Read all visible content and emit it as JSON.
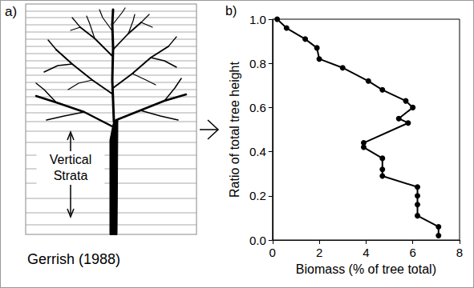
{
  "diagram": {
    "label": "a)",
    "strata_label": "Vertical Strata",
    "caption": "Gerrish (1988)"
  },
  "chart_data": {
    "type": "line",
    "title": "b)",
    "x_label": "Biomass (% of tree total)",
    "y_label": "Ratio of total tree height",
    "x": [
      0.2,
      0.6,
      1.4,
      1.9,
      2.0,
      3.0,
      4.1,
      4.7,
      5.7,
      6.0,
      5.4,
      5.8,
      3.9,
      3.9,
      4.7,
      4.7,
      4.7,
      6.2,
      6.2,
      6.2,
      6.2,
      7.1,
      7.1
    ],
    "values": [
      1.0,
      0.96,
      0.91,
      0.87,
      0.82,
      0.78,
      0.72,
      0.68,
      0.63,
      0.6,
      0.55,
      0.53,
      0.44,
      0.42,
      0.37,
      0.32,
      0.29,
      0.24,
      0.2,
      0.16,
      0.11,
      0.06,
      0.02
    ],
    "color": "#000000",
    "marker": "circle",
    "xlim": [
      0,
      8
    ],
    "xticks": [
      0,
      2,
      4,
      6,
      8
    ],
    "ylim": [
      0,
      1
    ],
    "yticks": [
      {
        "value": 0,
        "label": "0.0"
      },
      {
        "value": 0.2,
        "label": "0.2"
      },
      {
        "value": 0.4,
        "label": "0.4"
      },
      {
        "value": 0.6,
        "label": "0.6"
      },
      {
        "value": 0.8,
        "label": "0.8"
      },
      {
        "value": 1,
        "label": "1.0"
      }
    ],
    "grid": false
  }
}
